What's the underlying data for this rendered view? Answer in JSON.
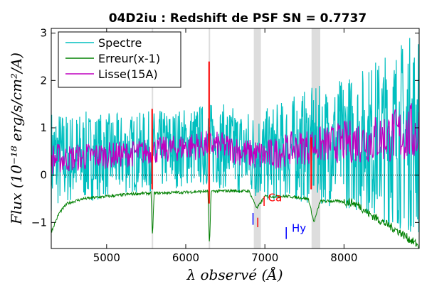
{
  "chart_data": {
    "type": "line",
    "title": "04D2iu : Redshift de PSF SN = 0.7737",
    "xlabel": "λ observé (Å)",
    "ylabel": "Flux (10⁻¹⁸ erg/s/cm²/A)",
    "xlim": [
      4300,
      8950
    ],
    "ylim": [
      -1.55,
      3.1
    ],
    "xticks": [
      5000,
      6000,
      7000,
      8000
    ],
    "yticks": [
      -1,
      0,
      1,
      2,
      3
    ],
    "legend": {
      "position": "top-left",
      "entries": [
        {
          "label": "Spectre",
          "color": "#00bfbf"
        },
        {
          "label": "Erreur(x-1)",
          "color": "#008000"
        },
        {
          "label": "Lisse(15A)",
          "color": "#bf00bf"
        }
      ]
    },
    "shaded_regions": [
      {
        "x": [
          5570,
          5585
        ]
      },
      {
        "x": [
          6290,
          6305
        ]
      },
      {
        "x": [
          6860,
          6950
        ]
      },
      {
        "x": [
          7590,
          7700
        ]
      }
    ],
    "zero_line": {
      "y": 0,
      "style": "dotted"
    },
    "series": [
      {
        "name": "Spectre",
        "color": "#00bfbf",
        "noise": true,
        "x": [
          4300,
          4500,
          4800,
          5000,
          5300,
          5500,
          5800,
          6000,
          6300,
          6500,
          6800,
          7000,
          7300,
          7500,
          7800,
          8000,
          8300,
          8500,
          8700,
          8950
        ],
        "y": [
          0.35,
          0.35,
          0.4,
          0.42,
          0.45,
          0.5,
          0.55,
          0.6,
          0.65,
          0.6,
          0.45,
          0.4,
          0.55,
          0.6,
          0.65,
          0.7,
          0.75,
          0.8,
          0.85,
          0.9
        ],
        "amplitude": [
          1.1,
          1.0,
          0.95,
          0.9,
          0.85,
          0.85,
          0.85,
          0.85,
          0.9,
          0.9,
          0.95,
          1.0,
          1.1,
          1.2,
          1.3,
          1.4,
          1.6,
          1.8,
          2.0,
          2.2
        ]
      },
      {
        "name": "Erreur(x-1)",
        "color": "#008000",
        "x": [
          4300,
          4400,
          4500,
          4700,
          5000,
          5300,
          5560,
          5580,
          5600,
          6000,
          6280,
          6300,
          6320,
          6600,
          6800,
          6900,
          7000,
          7300,
          7550,
          7620,
          7700,
          7900,
          8100,
          8200,
          8300,
          8500,
          8700,
          8950
        ],
        "y": [
          -1.2,
          -0.8,
          -0.6,
          -0.5,
          -0.45,
          -0.4,
          -0.38,
          -1.3,
          -0.38,
          -0.36,
          -0.34,
          -1.55,
          -0.34,
          -0.33,
          -0.34,
          -0.7,
          -0.45,
          -0.45,
          -0.5,
          -1.0,
          -0.55,
          -0.55,
          -0.58,
          -0.65,
          -0.8,
          -1.0,
          -1.2,
          -1.5
        ]
      },
      {
        "name": "Lisse(15A)",
        "color": "#bf00bf",
        "noise": true,
        "x": [
          4300,
          4500,
          4800,
          5000,
          5300,
          5500,
          5800,
          6000,
          6300,
          6500,
          6800,
          7000,
          7300,
          7500,
          7800,
          8000,
          8300,
          8500,
          8700,
          8950
        ],
        "y": [
          0.35,
          0.35,
          0.4,
          0.42,
          0.45,
          0.5,
          0.55,
          0.6,
          0.65,
          0.6,
          0.45,
          0.4,
          0.55,
          0.6,
          0.65,
          0.7,
          0.75,
          0.8,
          0.85,
          0.9
        ],
        "amplitude": [
          0.35,
          0.3,
          0.3,
          0.28,
          0.28,
          0.28,
          0.28,
          0.3,
          0.3,
          0.3,
          0.32,
          0.35,
          0.35,
          0.38,
          0.4,
          0.45,
          0.5,
          0.55,
          0.6,
          0.7
        ]
      }
    ],
    "red_spikes": [
      {
        "x": 5575,
        "y": [
          -0.3,
          1.4
        ]
      },
      {
        "x": 6295,
        "y": [
          -0.6,
          2.4
        ]
      },
      {
        "x": 7585,
        "y": [
          -0.3,
          0.8
        ]
      }
    ],
    "annotations": [
      {
        "text": "Ca",
        "x": 7040,
        "y": -0.55,
        "color": "#ff0000"
      },
      {
        "text": "Hy",
        "x": 7340,
        "y": -1.2,
        "color": "#0000ff"
      }
    ],
    "line_markers": [
      {
        "x": 6850,
        "y": [
          -0.8,
          -1.05
        ],
        "color": "#0000ff"
      },
      {
        "x": 6910,
        "y": [
          -0.9,
          -1.1
        ],
        "color": "#ff0000"
      },
      {
        "x": 6990,
        "y": [
          -0.45,
          -0.65
        ],
        "color": "#ff0000"
      },
      {
        "x": 7270,
        "y": [
          -1.1,
          -1.35
        ],
        "color": "#0000ff"
      }
    ]
  }
}
